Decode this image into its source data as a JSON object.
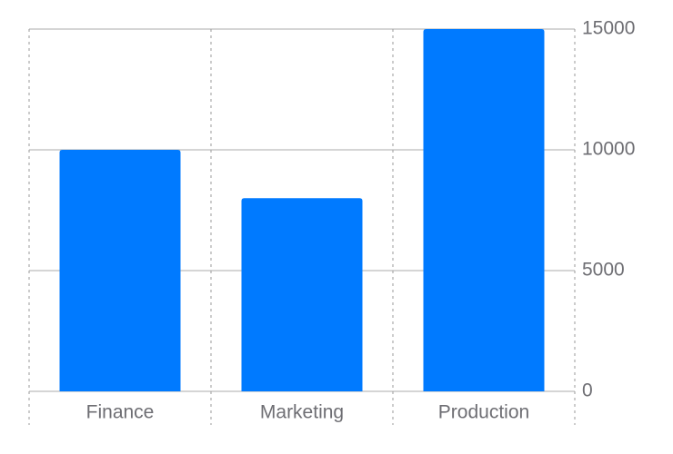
{
  "chart_data": {
    "type": "bar",
    "categories": [
      "Finance",
      "Marketing",
      "Production"
    ],
    "values": [
      10000,
      8000,
      15000
    ],
    "title": "",
    "xlabel": "",
    "ylabel": "",
    "ylim": [
      0,
      15000
    ],
    "yticks": [
      "0",
      "5000",
      "10000",
      "15000"
    ],
    "y_axis_side": "right",
    "grid": true,
    "bar_color": "#007AFF",
    "grid_color": "#c7c7c7"
  }
}
